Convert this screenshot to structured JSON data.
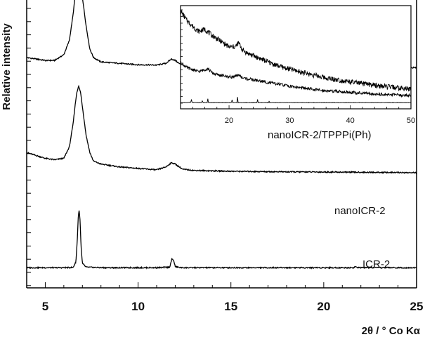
{
  "chart_data": {
    "type": "line",
    "xlabel": "2θ / ° Co Kα",
    "ylabel": "Relative intensity",
    "xlim": [
      4,
      25
    ],
    "xticks": [
      5,
      10,
      15,
      20,
      25
    ],
    "y_tick_labels": false,
    "series": [
      {
        "name": "nanoICR-2/TPPPi(Ph)",
        "baseline": 0.8,
        "points": [
          [
            4.0,
            0.8
          ],
          [
            5.0,
            0.79
          ],
          [
            5.5,
            0.79
          ],
          [
            6.0,
            0.81
          ],
          [
            6.3,
            0.86
          ],
          [
            6.5,
            0.95
          ],
          [
            6.6,
            1.01
          ],
          [
            6.7,
            1.05
          ],
          [
            6.8,
            1.07
          ],
          [
            6.9,
            1.05
          ],
          [
            7.0,
            1.01
          ],
          [
            7.2,
            0.91
          ],
          [
            7.4,
            0.83
          ],
          [
            7.6,
            0.8
          ],
          [
            8.0,
            0.785
          ],
          [
            9.0,
            0.78
          ],
          [
            10.0,
            0.775
          ],
          [
            11.0,
            0.774
          ],
          [
            11.5,
            0.78
          ],
          [
            11.8,
            0.795
          ],
          [
            12.0,
            0.79
          ],
          [
            12.3,
            0.775
          ],
          [
            13.0,
            0.772
          ],
          [
            15.0,
            0.77
          ],
          [
            18.0,
            0.768
          ],
          [
            21.0,
            0.767
          ],
          [
            25.0,
            0.765
          ]
        ]
      },
      {
        "name": "nanoICR-2",
        "baseline": 0.46,
        "points": [
          [
            4.0,
            0.47
          ],
          [
            5.0,
            0.45
          ],
          [
            5.5,
            0.445
          ],
          [
            6.0,
            0.45
          ],
          [
            6.3,
            0.49
          ],
          [
            6.5,
            0.57
          ],
          [
            6.6,
            0.63
          ],
          [
            6.7,
            0.68
          ],
          [
            6.8,
            0.7
          ],
          [
            6.9,
            0.68
          ],
          [
            7.0,
            0.63
          ],
          [
            7.2,
            0.53
          ],
          [
            7.4,
            0.47
          ],
          [
            7.6,
            0.44
          ],
          [
            8.0,
            0.43
          ],
          [
            9.0,
            0.42
          ],
          [
            10.0,
            0.415
          ],
          [
            11.0,
            0.41
          ],
          [
            11.5,
            0.42
          ],
          [
            11.8,
            0.435
          ],
          [
            12.0,
            0.43
          ],
          [
            12.4,
            0.412
          ],
          [
            13.0,
            0.408
          ],
          [
            15.0,
            0.405
          ],
          [
            18.0,
            0.403
          ],
          [
            21.0,
            0.402
          ],
          [
            25.0,
            0.4
          ]
        ]
      },
      {
        "name": "ICR-2",
        "baseline": 0.07,
        "points": [
          [
            4.0,
            0.07
          ],
          [
            6.0,
            0.07
          ],
          [
            6.5,
            0.071
          ],
          [
            6.65,
            0.09
          ],
          [
            6.72,
            0.16
          ],
          [
            6.78,
            0.25
          ],
          [
            6.82,
            0.27
          ],
          [
            6.87,
            0.24
          ],
          [
            6.93,
            0.14
          ],
          [
            7.0,
            0.085
          ],
          [
            7.2,
            0.072
          ],
          [
            8.0,
            0.07
          ],
          [
            11.0,
            0.07
          ],
          [
            11.7,
            0.072
          ],
          [
            11.82,
            0.1
          ],
          [
            11.92,
            0.095
          ],
          [
            12.0,
            0.074
          ],
          [
            12.3,
            0.07
          ],
          [
            15.0,
            0.07
          ],
          [
            21.6,
            0.07
          ],
          [
            21.7,
            0.074
          ],
          [
            21.8,
            0.07
          ],
          [
            25.0,
            0.07
          ]
        ]
      }
    ],
    "inset": {
      "xlim": [
        12,
        50
      ],
      "xticks": [
        20,
        30,
        40,
        50
      ],
      "series": [
        {
          "name": "nanoICR-2/TPPPi(Ph)",
          "points": [
            [
              12,
              0.95
            ],
            [
              13,
              0.86
            ],
            [
              14,
              0.8
            ],
            [
              15,
              0.75
            ],
            [
              16,
              0.77
            ],
            [
              17,
              0.72
            ],
            [
              18,
              0.68
            ],
            [
              19,
              0.64
            ],
            [
              20,
              0.6
            ],
            [
              21,
              0.6
            ],
            [
              21.6,
              0.64
            ],
            [
              22.2,
              0.57
            ],
            [
              23,
              0.54
            ],
            [
              25,
              0.49
            ],
            [
              27,
              0.44
            ],
            [
              29,
              0.4
            ],
            [
              31,
              0.37
            ],
            [
              33,
              0.34
            ],
            [
              36,
              0.3
            ],
            [
              40,
              0.26
            ],
            [
              45,
              0.22
            ],
            [
              50,
              0.19
            ]
          ]
        },
        {
          "name": "nanoICR-2",
          "points": [
            [
              12,
              0.45
            ],
            [
              13,
              0.4
            ],
            [
              14,
              0.38
            ],
            [
              15,
              0.36
            ],
            [
              16,
              0.38
            ],
            [
              16.5,
              0.39
            ],
            [
              17.2,
              0.35
            ],
            [
              18,
              0.33
            ],
            [
              20,
              0.31
            ],
            [
              21,
              0.31
            ],
            [
              21.6,
              0.33
            ],
            [
              22.2,
              0.3
            ],
            [
              25,
              0.27
            ],
            [
              28,
              0.24
            ],
            [
              31,
              0.21
            ],
            [
              35,
              0.18
            ],
            [
              40,
              0.16
            ],
            [
              45,
              0.14
            ],
            [
              50,
              0.13
            ]
          ]
        },
        {
          "name": "ICR-2",
          "points": [
            [
              12,
              0.06
            ],
            [
              13,
              0.06
            ],
            [
              13.7,
              0.065
            ],
            [
              13.8,
              0.09
            ],
            [
              13.9,
              0.062
            ],
            [
              15,
              0.06
            ],
            [
              15.5,
              0.062
            ],
            [
              15.6,
              0.08
            ],
            [
              15.7,
              0.06
            ],
            [
              16.4,
              0.06
            ],
            [
              16.5,
              0.1
            ],
            [
              16.6,
              0.06
            ],
            [
              20,
              0.06
            ],
            [
              20.4,
              0.062
            ],
            [
              20.5,
              0.09
            ],
            [
              20.6,
              0.06
            ],
            [
              21.3,
              0.06
            ],
            [
              21.4,
              0.12
            ],
            [
              21.5,
              0.06
            ],
            [
              24,
              0.06
            ],
            [
              24.6,
              0.06
            ],
            [
              24.7,
              0.09
            ],
            [
              24.8,
              0.06
            ],
            [
              26.5,
              0.06
            ],
            [
              26.6,
              0.075
            ],
            [
              26.7,
              0.06
            ],
            [
              30,
              0.06
            ],
            [
              35,
              0.06
            ],
            [
              40,
              0.06
            ],
            [
              45,
              0.06
            ],
            [
              50,
              0.06
            ]
          ]
        }
      ]
    }
  }
}
